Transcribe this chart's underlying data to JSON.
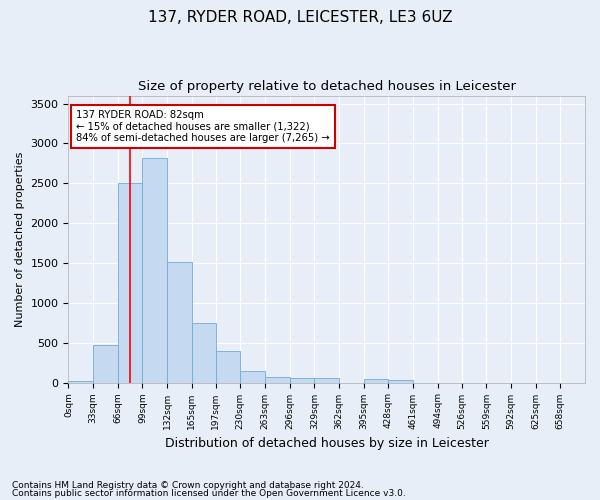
{
  "title_line1": "137, RYDER ROAD, LEICESTER, LE3 6UZ",
  "title_line2": "Size of property relative to detached houses in Leicester",
  "xlabel": "Distribution of detached houses by size in Leicester",
  "ylabel": "Number of detached properties",
  "annotation_line1": "137 RYDER ROAD: 82sqm",
  "annotation_line2": "← 15% of detached houses are smaller (1,322)",
  "annotation_line3": "84% of semi-detached houses are larger (7,265) →",
  "footnote1": "Contains HM Land Registry data © Crown copyright and database right 2024.",
  "footnote2": "Contains public sector information licensed under the Open Government Licence v3.0.",
  "bar_color": "#c5d9f0",
  "bar_edge_color": "#6baed6",
  "property_line_x": 82,
  "annotation_box_color": "#ffffff",
  "annotation_box_edge": "#cc0000",
  "categories": [
    "0sqm",
    "33sqm",
    "66sqm",
    "99sqm",
    "132sqm",
    "165sqm",
    "197sqm",
    "230sqm",
    "263sqm",
    "296sqm",
    "329sqm",
    "362sqm",
    "395sqm",
    "428sqm",
    "461sqm",
    "494sqm",
    "526sqm",
    "559sqm",
    "592sqm",
    "625sqm",
    "658sqm"
  ],
  "bin_edges": [
    0,
    33,
    66,
    99,
    132,
    165,
    197,
    230,
    263,
    296,
    329,
    362,
    395,
    428,
    461,
    494,
    526,
    559,
    592,
    625,
    658,
    691
  ],
  "values": [
    20,
    470,
    2500,
    2820,
    1510,
    750,
    390,
    140,
    75,
    55,
    55,
    0,
    45,
    35,
    0,
    0,
    0,
    0,
    0,
    0,
    0
  ],
  "ylim": [
    0,
    3600
  ],
  "yticks": [
    0,
    500,
    1000,
    1500,
    2000,
    2500,
    3000,
    3500
  ],
  "background_color": "#e8eef8",
  "plot_bg_color": "#e8eef8",
  "grid_color": "#ffffff",
  "title1_fontsize": 11,
  "title2_fontsize": 9.5,
  "footnote_fontsize": 6.5
}
